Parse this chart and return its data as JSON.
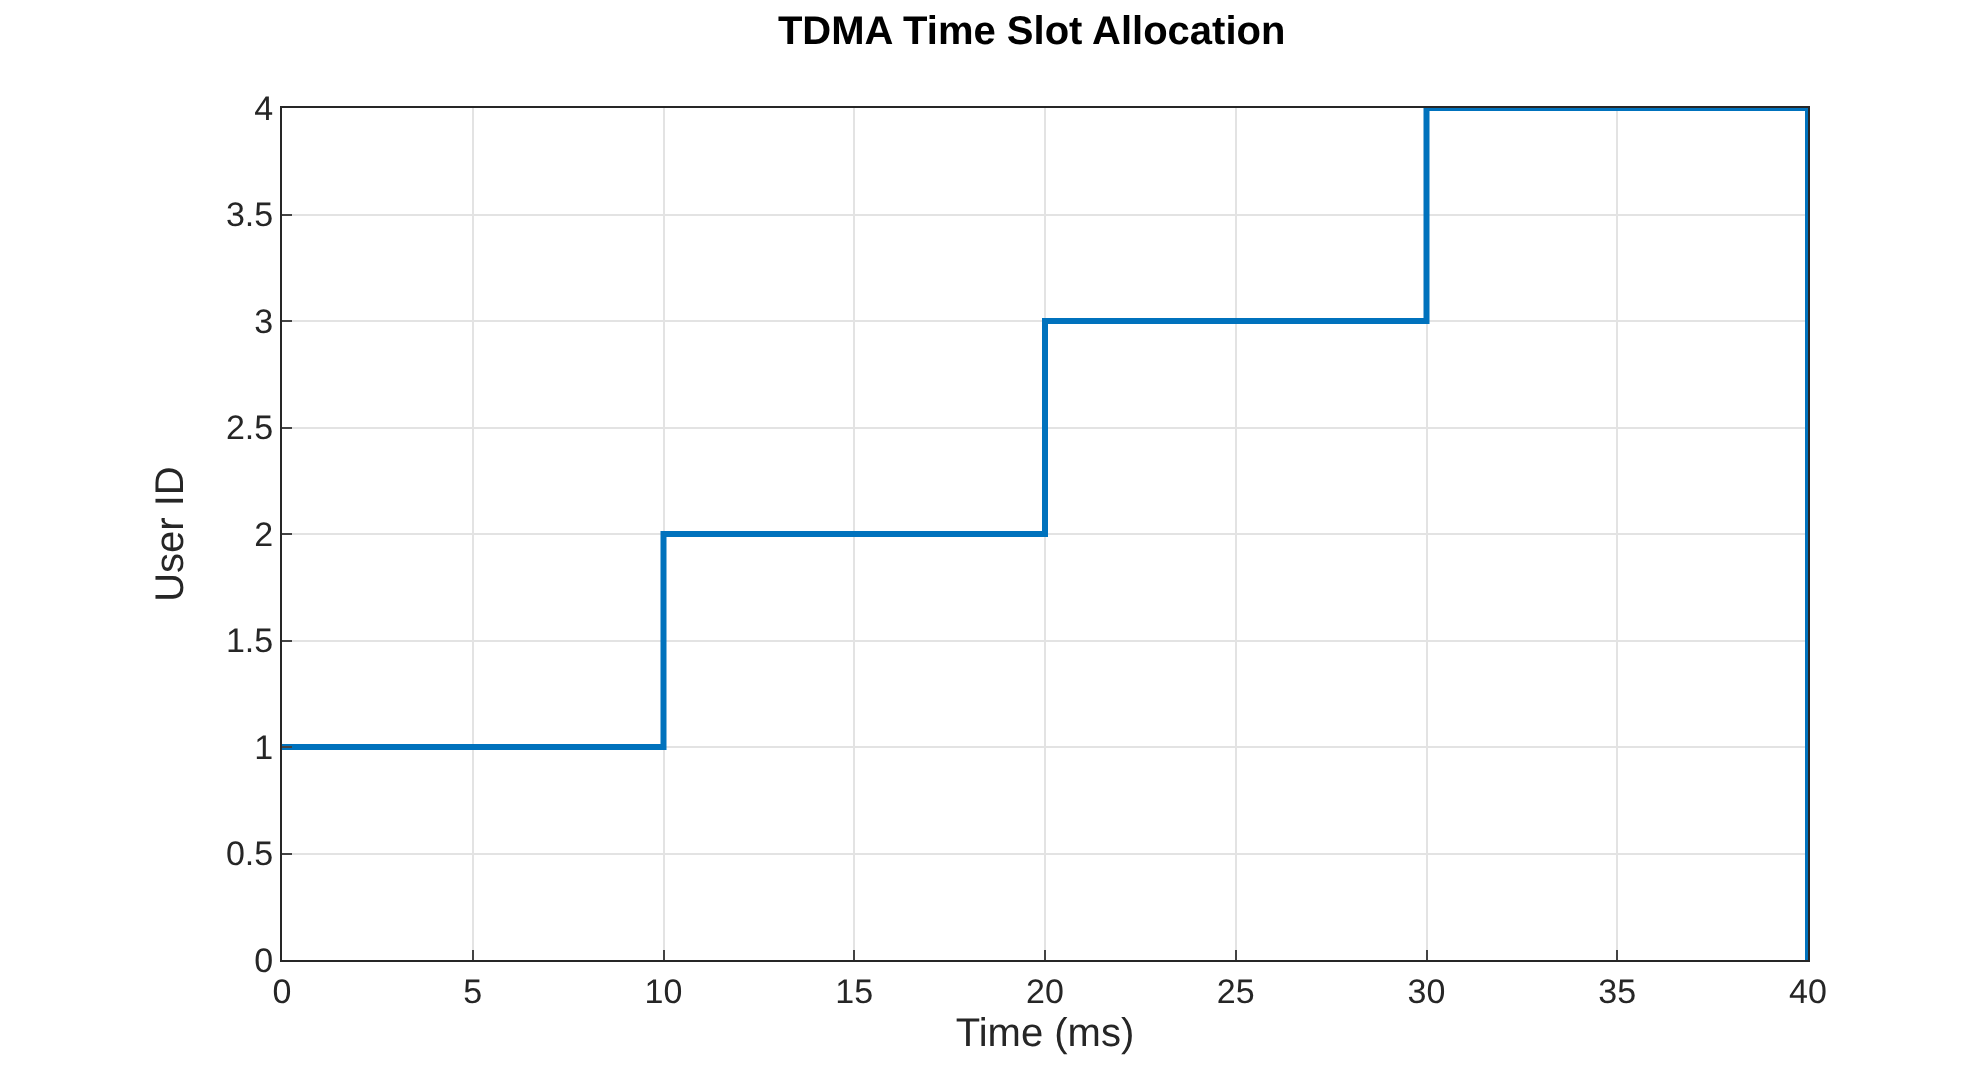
{
  "chart_data": {
    "type": "line",
    "title": "TDMA Time Slot Allocation",
    "xlabel": "Time (ms)",
    "ylabel": "User ID",
    "x": [
      0,
      10,
      10,
      20,
      20,
      30,
      30,
      40,
      40
    ],
    "series": [
      {
        "color": "#0072bd",
        "values": [
          1,
          1,
          2,
          2,
          3,
          3,
          4,
          4,
          0
        ]
      }
    ],
    "xlim": [
      0,
      40
    ],
    "xticks": [
      0,
      5,
      10,
      15,
      20,
      25,
      30,
      35,
      40
    ],
    "ylim": [
      0,
      4
    ],
    "yticks": [
      0,
      0.5,
      1,
      1.5,
      2,
      2.5,
      3,
      3.5,
      4
    ],
    "grid": true,
    "legend": false,
    "line_style": "solid",
    "marker": "none"
  }
}
